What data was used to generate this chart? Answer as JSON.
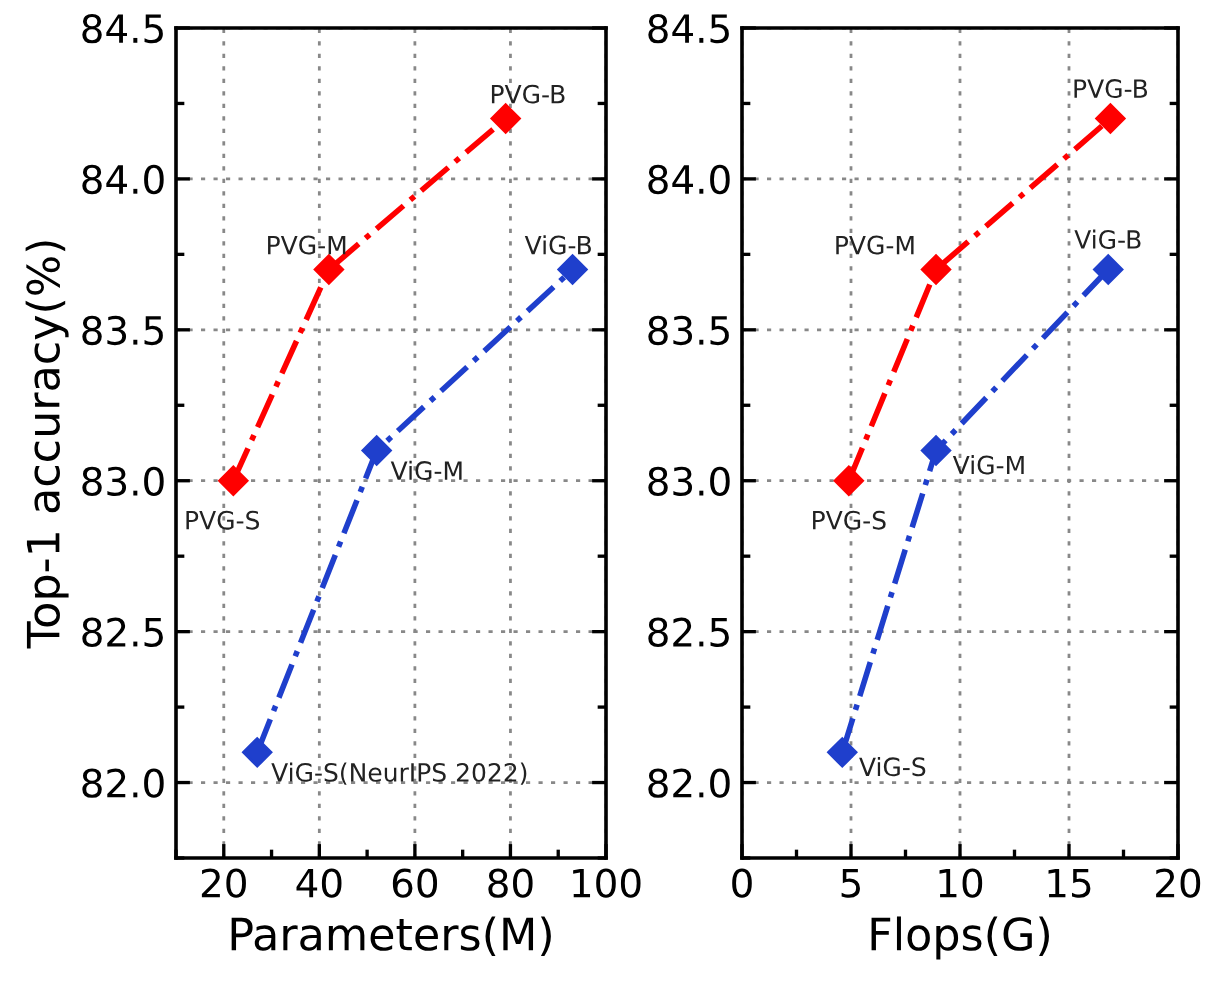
{
  "chart_data": [
    {
      "type": "line",
      "xlabel": "Parameters(M)",
      "ylabel": "Top-1 accuracy(%)",
      "xlim": [
        10,
        100
      ],
      "xticks": [
        20,
        40,
        60,
        80,
        100
      ],
      "ylim": [
        81.75,
        84.5
      ],
      "yticks": [
        {
          "value": 82.0,
          "label": "82.0"
        },
        {
          "value": 82.5,
          "label": "82.5"
        },
        {
          "value": 83.0,
          "label": "83.0"
        },
        {
          "value": 83.5,
          "label": "83.5"
        },
        {
          "value": 84.0,
          "label": "84.0"
        },
        {
          "value": 84.5,
          "label": "84.5"
        }
      ],
      "grid": true,
      "marker": "diamond",
      "line_style": "dashdot",
      "series": [
        {
          "color": "#ff0000",
          "x": [
            22,
            42,
            79
          ],
          "values": [
            83.0,
            83.7,
            84.2
          ]
        },
        {
          "color": "#1f3fcc",
          "x": [
            27,
            52,
            93
          ],
          "values": [
            82.1,
            83.1,
            83.7
          ]
        }
      ],
      "annotations": [
        {
          "text": "PVG-S",
          "x": 22,
          "y": 83.0
        },
        {
          "text": "PVG-M",
          "x": 42,
          "y": 83.7
        },
        {
          "text": "PVG-B",
          "x": 79,
          "y": 84.2
        },
        {
          "text": "ViG-S(NeurIPS 2022)",
          "x": 27,
          "y": 82.1
        },
        {
          "text": "ViG-M",
          "x": 52,
          "y": 83.1
        },
        {
          "text": "ViG-B",
          "x": 93,
          "y": 83.7
        }
      ]
    },
    {
      "type": "line",
      "xlabel": "Flops(G)",
      "xlim": [
        0,
        20
      ],
      "xticks": [
        0,
        5,
        10,
        15,
        20
      ],
      "ylim": [
        81.75,
        84.5
      ],
      "yticks": [
        {
          "value": 82.0,
          "label": "82.0"
        },
        {
          "value": 82.5,
          "label": "82.5"
        },
        {
          "value": 83.0,
          "label": "83.0"
        },
        {
          "value": 83.5,
          "label": "83.5"
        },
        {
          "value": 84.0,
          "label": "84.0"
        },
        {
          "value": 84.5,
          "label": "84.5"
        }
      ],
      "grid": true,
      "marker": "diamond",
      "line_style": "dashdot",
      "series": [
        {
          "color": "#ff0000",
          "x": [
            4.9,
            8.9,
            16.9
          ],
          "values": [
            83.0,
            83.7,
            84.2
          ]
        },
        {
          "color": "#1f3fcc",
          "x": [
            4.6,
            8.9,
            16.8
          ],
          "values": [
            82.1,
            83.1,
            83.7
          ]
        }
      ],
      "annotations": [
        {
          "text": "PVG-S",
          "x": 4.9,
          "y": 83.0
        },
        {
          "text": "PVG-M",
          "x": 8.9,
          "y": 83.7
        },
        {
          "text": "PVG-B",
          "x": 16.9,
          "y": 84.2
        },
        {
          "text": "ViG-S",
          "x": 4.6,
          "y": 82.1
        },
        {
          "text": "ViG-M",
          "x": 8.9,
          "y": 83.1
        },
        {
          "text": "ViG-B",
          "x": 16.8,
          "y": 83.7
        }
      ]
    }
  ]
}
